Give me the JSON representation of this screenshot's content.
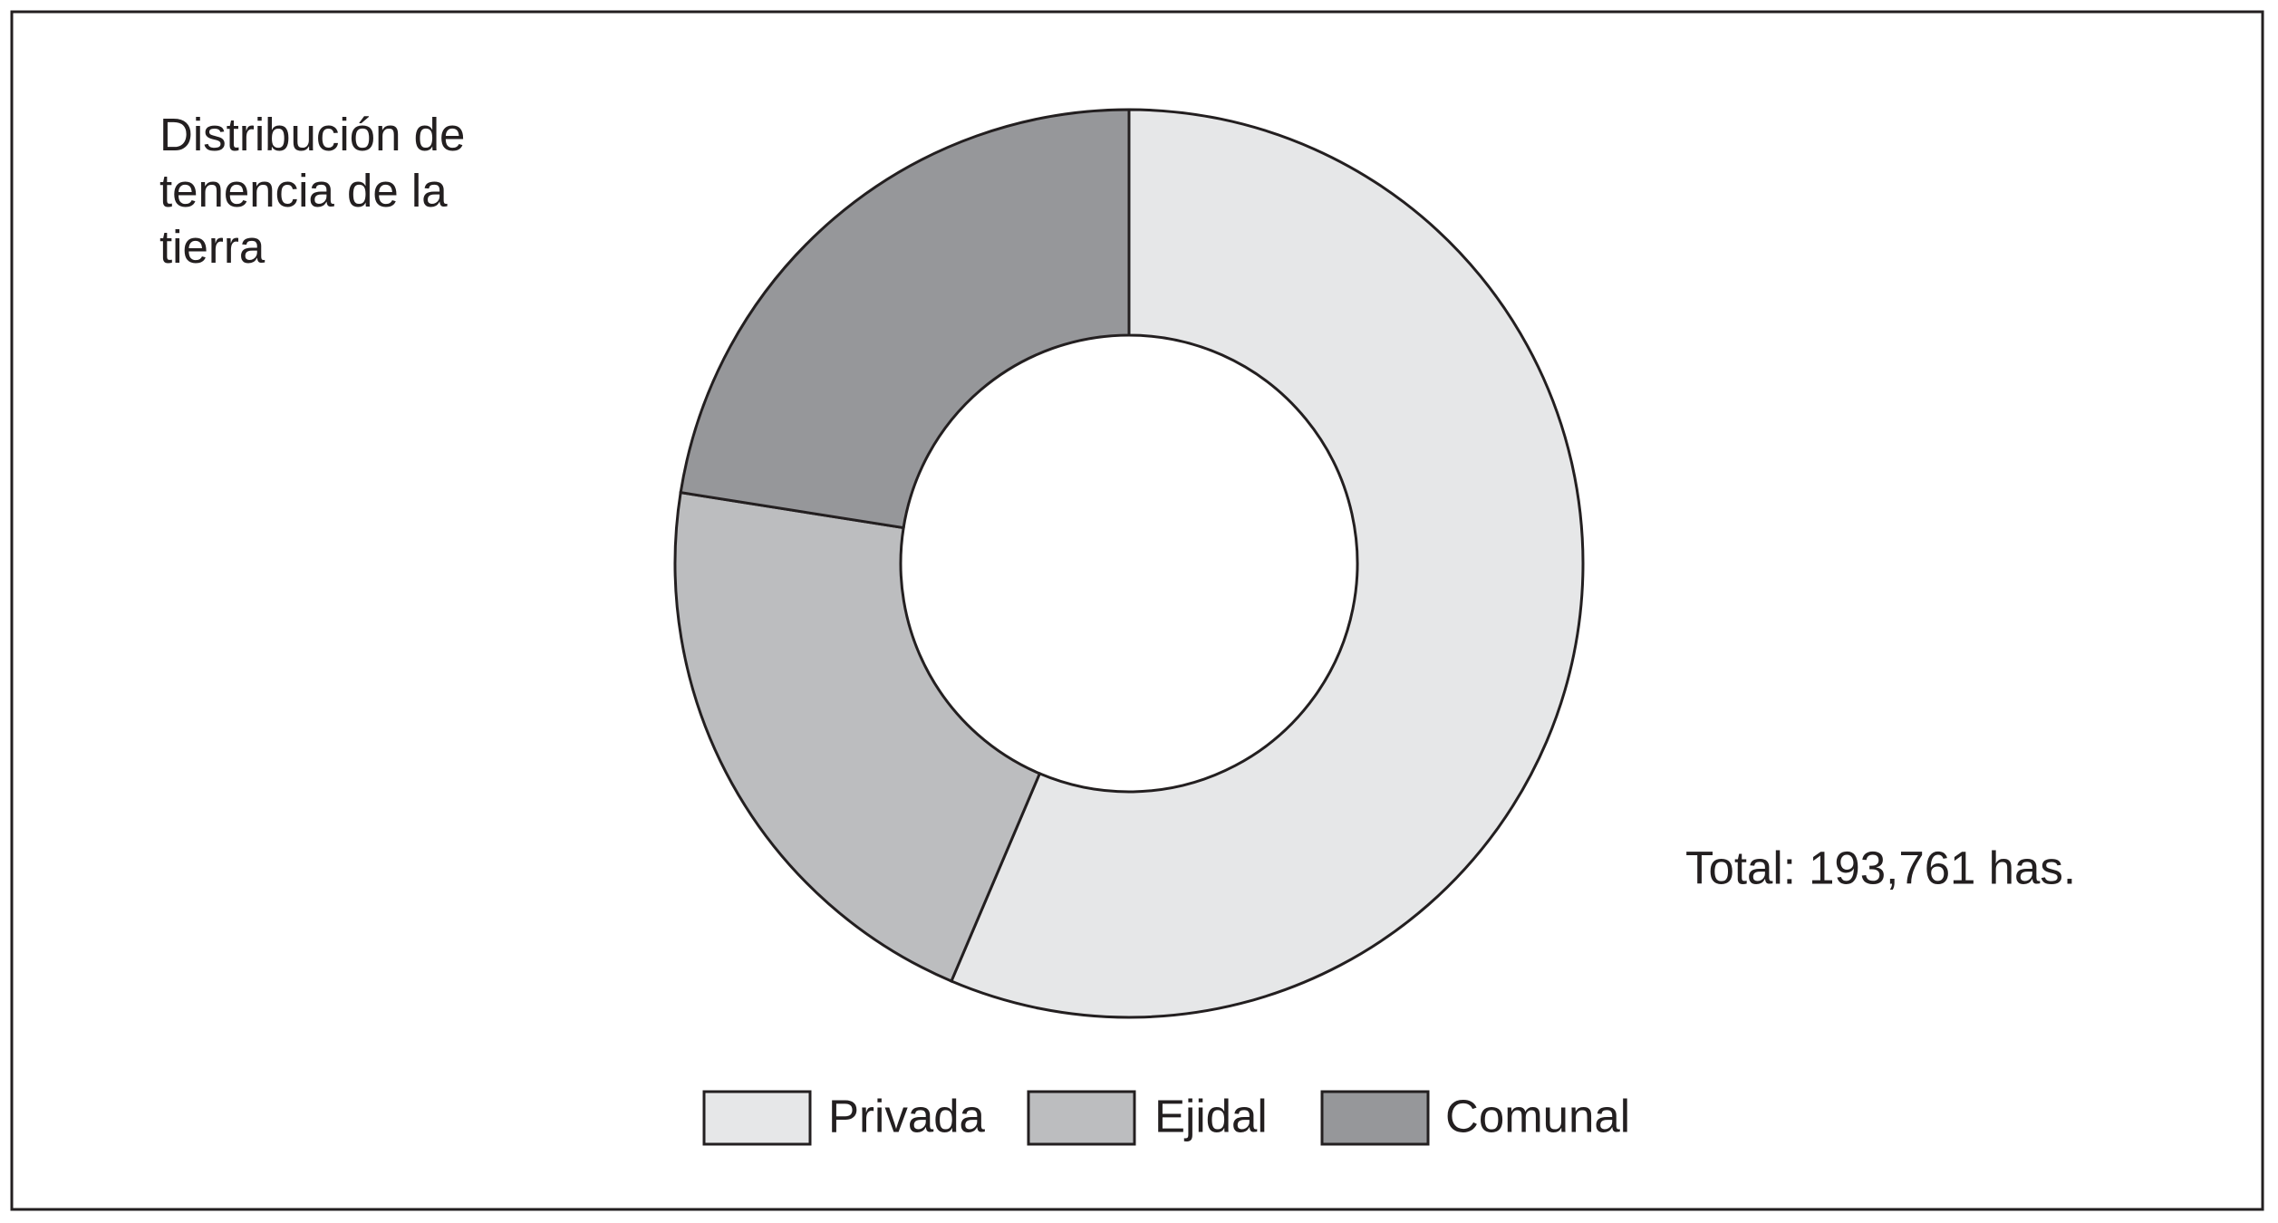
{
  "chart_data": {
    "type": "donut",
    "title": "Distribución de tenencia de la tierra",
    "categories": [
      "Privada",
      "Ejidal",
      "Comunal"
    ],
    "values": [
      56.4,
      21.1,
      22.5
    ],
    "colors": [
      "#e6e7e8",
      "#bcbdbf",
      "#96979a"
    ],
    "annotation": "Total: 193,761 has."
  }
}
